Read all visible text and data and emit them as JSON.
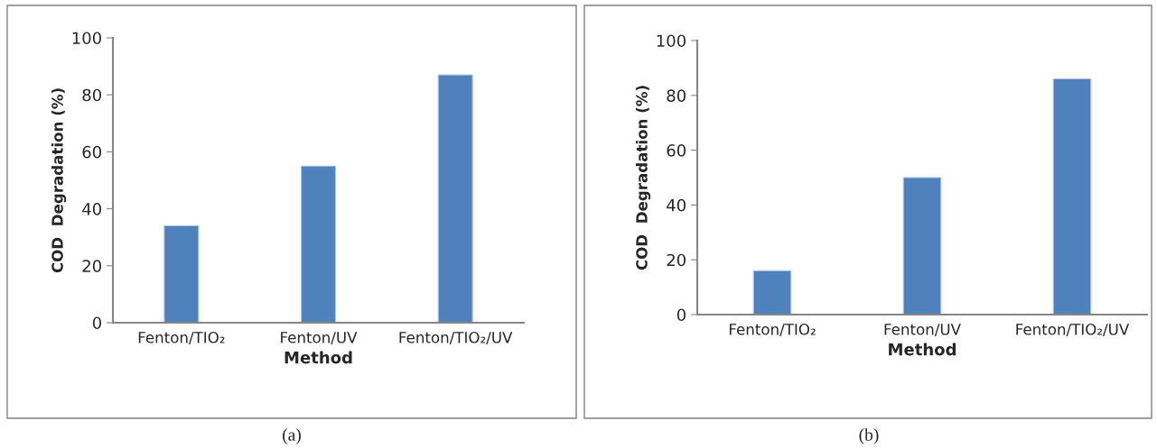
{
  "chart_data": [
    {
      "type": "bar",
      "categories": [
        "Fenton/TIO₂",
        "Fenton/UV",
        "Fenton/TIO₂/UV"
      ],
      "values": [
        34,
        55,
        87
      ],
      "color": "#4f81bd",
      "xlabel": "Method",
      "ylabel": "COD  Degradation (%)",
      "ylim": [
        0,
        100
      ],
      "yticks": [
        0,
        20,
        40,
        60,
        80,
        100
      ],
      "grid": false,
      "annotations": [
        "(a)"
      ]
    },
    {
      "type": "bar",
      "categories": [
        "Fenton/TIO₂",
        "Fenton/UV",
        "Fenton/TIO₂/UV"
      ],
      "values": [
        16,
        50,
        86
      ],
      "color": "#4f81bd",
      "xlabel": "Method",
      "ylabel": "COD  Degradation (%)",
      "ylim": [
        0,
        100
      ],
      "yticks": [
        0,
        20,
        40,
        60,
        80,
        100
      ],
      "grid": false,
      "annotations": [
        "(b)"
      ]
    }
  ]
}
